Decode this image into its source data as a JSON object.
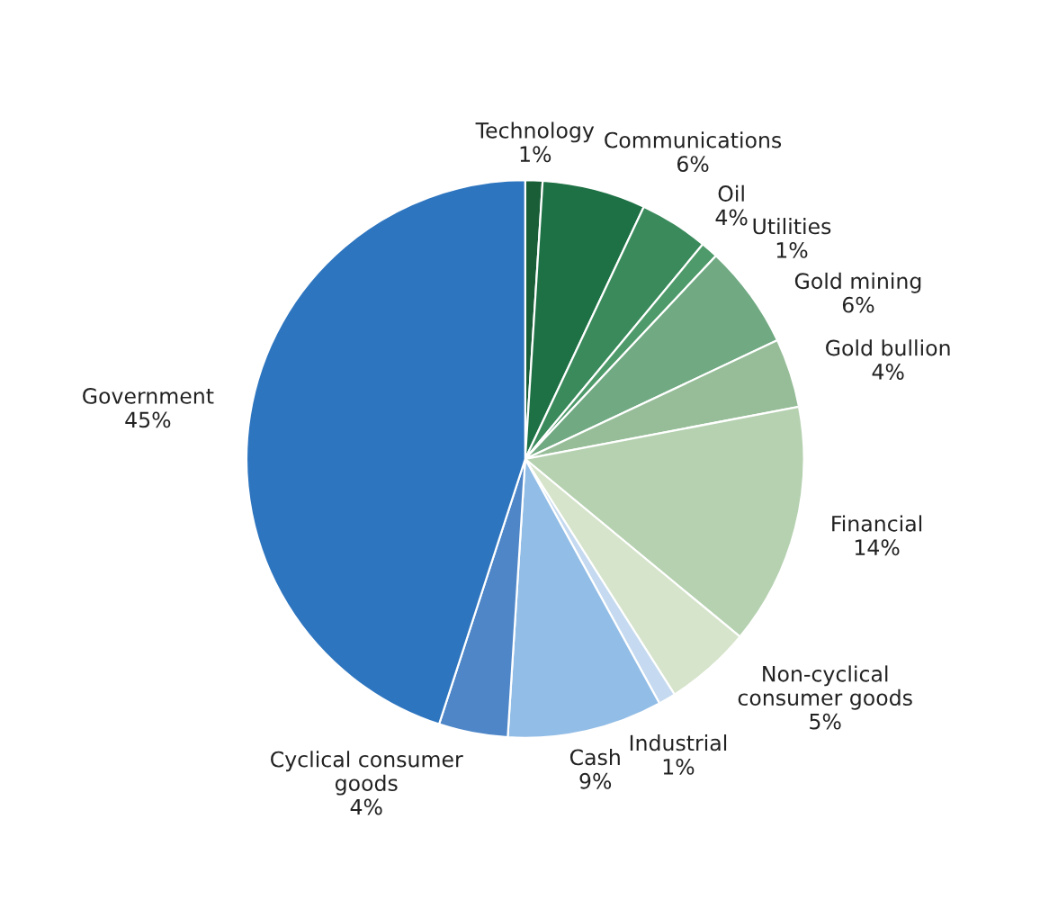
{
  "chart_data": {
    "type": "pie",
    "categories": [
      "Technology",
      "Communications",
      "Oil",
      "Utilities",
      "Gold mining",
      "Gold bullion",
      "Financial",
      "Non-cyclical\nconsumer goods",
      "Industrial",
      "Cash",
      "Cyclical consumer\ngoods",
      "Government"
    ],
    "values": [
      1,
      6,
      4,
      1,
      6,
      4,
      14,
      5,
      1,
      9,
      4,
      45
    ],
    "value_labels": [
      "1%",
      "6%",
      "4%",
      "1%",
      "6%",
      "4%",
      "14%",
      "5%",
      "1%",
      "9%",
      "4%",
      "45%"
    ],
    "colors": [
      "#1a5e38",
      "#1e7145",
      "#3a8a5c",
      "#4f9a6a",
      "#70a982",
      "#96bd98",
      "#b5d1b0",
      "#d6e4cb",
      "#c5daf0",
      "#92bde6",
      "#4e86c8",
      "#2e75bf"
    ]
  }
}
